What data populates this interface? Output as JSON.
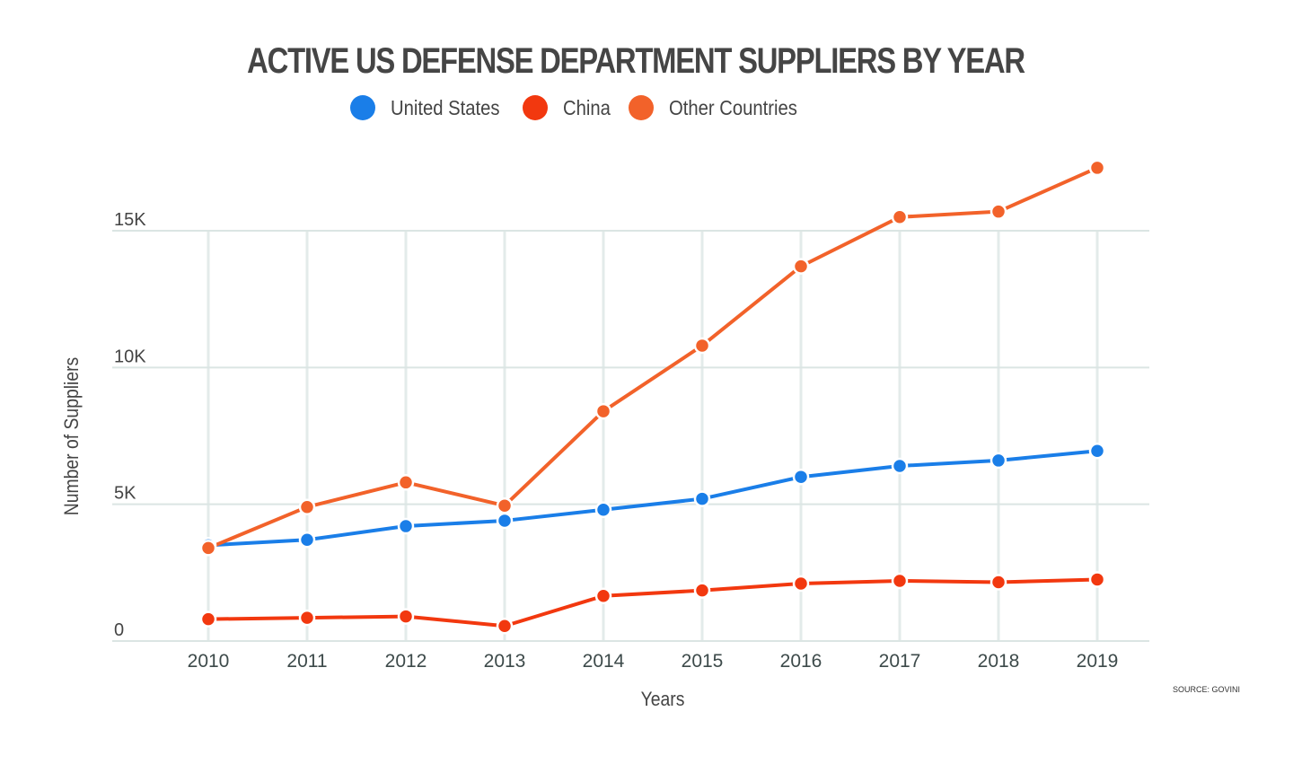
{
  "chart_data": {
    "type": "line",
    "title": "ACTIVE US DEFENSE DEPARTMENT SUPPLIERS BY YEAR",
    "xlabel": "Years",
    "ylabel": "Number of Suppliers",
    "x": [
      "2010",
      "2011",
      "2012",
      "2013",
      "2014",
      "2015",
      "2016",
      "2017",
      "2018",
      "2019"
    ],
    "ylim": [
      0,
      17500
    ],
    "yticks": [
      0,
      5000,
      10000,
      15000
    ],
    "ytick_labels": [
      "0",
      "5K",
      "10K",
      "15K"
    ],
    "grid": true,
    "legend_position": "top",
    "series": [
      {
        "name": "United States",
        "color": "#1a7ee8",
        "values": [
          3500,
          3700,
          4200,
          4400,
          4800,
          5200,
          6000,
          6400,
          6600,
          6950
        ]
      },
      {
        "name": "China",
        "color": "#f2380f",
        "values": [
          800,
          850,
          900,
          550,
          1650,
          1850,
          2100,
          2200,
          2150,
          2250
        ]
      },
      {
        "name": "Other Countries",
        "color": "#f2622a",
        "values": [
          3400,
          4900,
          5800,
          4950,
          8400,
          10800,
          13700,
          15500,
          15700,
          17300
        ]
      }
    ],
    "annotations": [
      "SOURCE: GOVINI"
    ]
  },
  "source": "SOURCE: GOVINI"
}
